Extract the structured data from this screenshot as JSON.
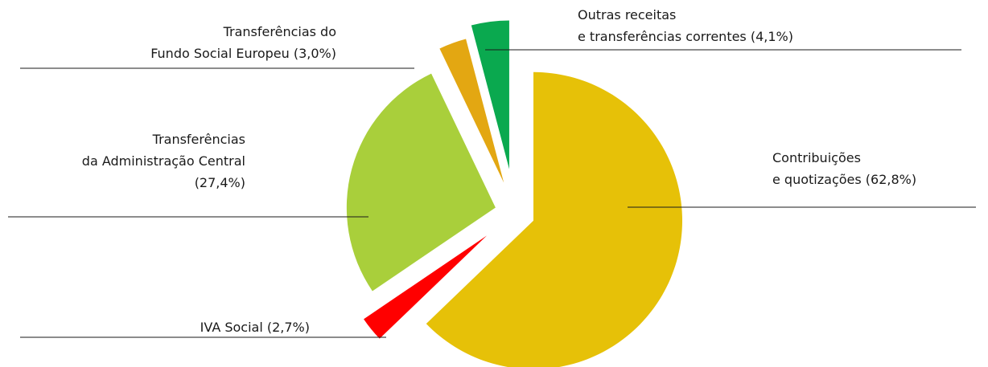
{
  "chart_data": {
    "type": "pie",
    "categories": [
      "Contribuições\ne quotizações (62,8%)",
      "IVA Social (2,7%)",
      "Transferências\nda Administração Central\n(27,4%)",
      "Transferências do\nFundo Social Europeu (3,0%)",
      "Outras receitas\ne transferências correntes (4,1%)"
    ],
    "values": [
      62.8,
      2.7,
      27.4,
      3.0,
      4.1
    ],
    "colors": [
      "#e6c108",
      "#ff0000",
      "#a9cf3b",
      "#e3a712",
      "#0aa94f"
    ]
  }
}
